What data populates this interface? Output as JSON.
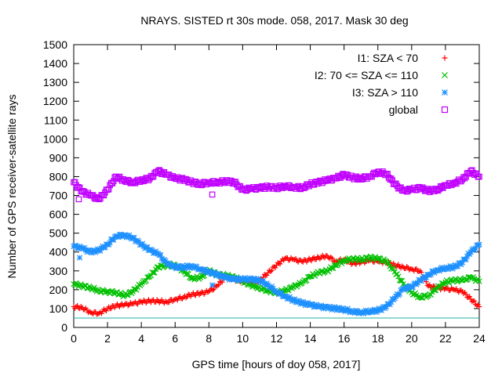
{
  "chart_data": {
    "type": "scatter",
    "title": "NRAYS. SISTED rt 30s mode. 058, 2017. Mask 30 deg",
    "xlabel": "GPS time [hours of doy 058, 2017]",
    "ylabel": "Number of GPS receiver-satellite rays",
    "xlim": [
      0,
      24
    ],
    "ylim": [
      0,
      1500
    ],
    "xticks": [
      "0",
      "2",
      "4",
      "6",
      "8",
      "10",
      "12",
      "14",
      "16",
      "18",
      "20",
      "22",
      "24"
    ],
    "yticks": [
      "0",
      "100",
      "200",
      "300",
      "400",
      "500",
      "600",
      "700",
      "800",
      "900",
      "1000",
      "1100",
      "1200",
      "1300",
      "1400",
      "1500"
    ],
    "grid": false,
    "legend_position": "top-right",
    "reference_line": {
      "y": 50,
      "color": "#20b2aa"
    },
    "series": [
      {
        "name": "I1: SZA < 70",
        "marker": "plus",
        "color": "#ff0000",
        "x": [
          0,
          0.5,
          1,
          1.5,
          2,
          2.5,
          3,
          3.5,
          4,
          4.5,
          5,
          5.5,
          6,
          6.5,
          7,
          7.5,
          8,
          8.5,
          9,
          9.5,
          10,
          10.5,
          11,
          11.5,
          12,
          12.5,
          13,
          13.5,
          14,
          14.5,
          15,
          15.5,
          16,
          16.5,
          17,
          17.5,
          18,
          18.5,
          19,
          19.5,
          20,
          20.5,
          21,
          21.5,
          22,
          22.5,
          23,
          23.5,
          24
        ],
        "y": [
          110,
          105,
          80,
          75,
          100,
          115,
          120,
          125,
          135,
          140,
          140,
          135,
          150,
          160,
          175,
          180,
          190,
          220,
          270,
          255,
          245,
          240,
          250,
          290,
          330,
          365,
          360,
          350,
          360,
          370,
          380,
          350,
          360,
          340,
          345,
          355,
          350,
          345,
          330,
          320,
          310,
          300,
          220,
          210,
          205,
          200,
          190,
          150,
          110
        ]
      },
      {
        "name": "I2: 70 <= SZA <= 110",
        "marker": "cross",
        "color": "#00c000",
        "x": [
          0,
          0.5,
          1,
          1.5,
          2,
          2.5,
          3,
          3.5,
          4,
          4.5,
          5,
          5.5,
          6,
          6.5,
          7,
          7.5,
          8,
          8.5,
          9,
          9.5,
          10,
          10.5,
          11,
          11.5,
          12,
          12.5,
          13,
          13.5,
          14,
          14.5,
          15,
          15.5,
          16,
          16.5,
          17,
          17.5,
          18,
          18.5,
          19,
          19.5,
          20,
          20.5,
          21,
          21.5,
          22,
          22.5,
          23,
          23.5,
          24
        ],
        "y": [
          230,
          220,
          210,
          195,
          190,
          185,
          170,
          190,
          230,
          270,
          320,
          330,
          330,
          300,
          260,
          265,
          300,
          280,
          275,
          265,
          245,
          225,
          210,
          195,
          185,
          195,
          215,
          235,
          270,
          290,
          300,
          330,
          355,
          365,
          360,
          370,
          365,
          350,
          295,
          230,
          185,
          160,
          170,
          210,
          240,
          250,
          250,
          265,
          245
        ]
      },
      {
        "name": "I3: SZA > 110",
        "marker": "star",
        "color": "#1e90ff",
        "x": [
          0,
          0.5,
          1,
          1.5,
          2,
          2.5,
          3,
          3.5,
          4,
          4.5,
          5,
          5.5,
          6,
          6.5,
          7,
          7.5,
          8,
          8.5,
          9,
          9.5,
          10,
          10.5,
          11,
          11.5,
          12,
          12.5,
          13,
          13.5,
          14,
          14.5,
          15,
          15.5,
          16,
          16.5,
          17,
          17.5,
          18,
          18.5,
          19,
          19.5,
          20,
          20.5,
          21,
          21.5,
          22,
          22.5,
          23,
          23.5,
          24
        ],
        "y": [
          430,
          420,
          400,
          410,
          440,
          485,
          490,
          475,
          440,
          410,
          390,
          340,
          320,
          320,
          325,
          310,
          295,
          280,
          265,
          255,
          255,
          255,
          250,
          225,
          190,
          165,
          145,
          130,
          120,
          110,
          105,
          100,
          95,
          85,
          80,
          85,
          90,
          110,
          155,
          205,
          215,
          250,
          280,
          305,
          315,
          320,
          345,
          400,
          440
        ]
      },
      {
        "name": "global",
        "marker": "square",
        "color": "#c000ff",
        "x": [
          0,
          0.5,
          1,
          1.5,
          2,
          2.5,
          3,
          3.5,
          4,
          4.5,
          5,
          5.5,
          6,
          6.5,
          7,
          7.5,
          8,
          8.5,
          9,
          9.5,
          10,
          10.5,
          11,
          11.5,
          12,
          12.5,
          13,
          13.5,
          14,
          14.5,
          15,
          15.5,
          16,
          16.5,
          17,
          17.5,
          18,
          18.5,
          19,
          19.5,
          20,
          20.5,
          21,
          21.5,
          22,
          22.5,
          23,
          23.5,
          24
        ],
        "y": [
          770,
          720,
          700,
          680,
          730,
          800,
          780,
          770,
          780,
          790,
          830,
          810,
          790,
          785,
          770,
          760,
          770,
          770,
          775,
          770,
          730,
          735,
          740,
          745,
          740,
          750,
          745,
          740,
          760,
          770,
          780,
          790,
          810,
          795,
          790,
          800,
          825,
          815,
          760,
          725,
          730,
          740,
          725,
          730,
          755,
          765,
          785,
          830,
          800
        ]
      }
    ],
    "outlier_points": [
      {
        "series": "global",
        "x": 0.3,
        "y": 680
      },
      {
        "series": "global",
        "x": 8.2,
        "y": 705
      },
      {
        "series": "I3: SZA > 110",
        "x": 0.35,
        "y": 370
      },
      {
        "series": "I3: SZA > 110",
        "x": 8.2,
        "y": 225
      }
    ]
  }
}
